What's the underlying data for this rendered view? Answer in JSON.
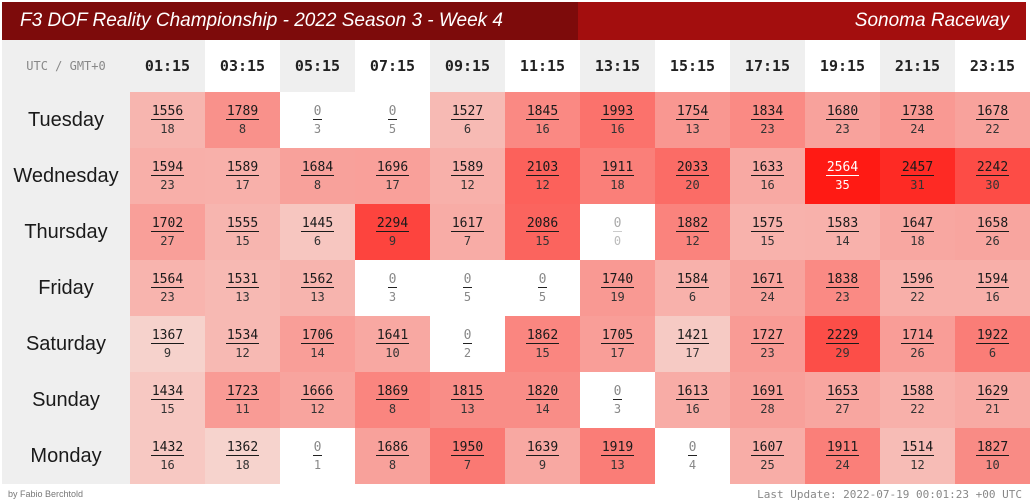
{
  "header": {
    "title": "F3 DOF Reality Championship - 2022 Season 3 - Week 4",
    "track": "Sonoma Raceway"
  },
  "footer": {
    "author": "by Fabio Berchtold",
    "last_update": "Last Update: 2022-07-19 00:01:23 +00 UTC"
  },
  "chart_data": {
    "type": "heatmap",
    "timezone_label": "UTC / GMT+0",
    "times": [
      "01:15",
      "03:15",
      "05:15",
      "07:15",
      "09:15",
      "11:15",
      "13:15",
      "15:15",
      "17:15",
      "19:15",
      "21:15",
      "23:15"
    ],
    "days": [
      "Tuesday",
      "Wednesday",
      "Thursday",
      "Friday",
      "Saturday",
      "Sunday",
      "Monday"
    ],
    "values": [
      [
        [
          1556,
          18
        ],
        [
          1789,
          8
        ],
        [
          0,
          3
        ],
        [
          0,
          5
        ],
        [
          1527,
          6
        ],
        [
          1845,
          16
        ],
        [
          1993,
          16
        ],
        [
          1754,
          13
        ],
        [
          1834,
          23
        ],
        [
          1680,
          23
        ],
        [
          1738,
          24
        ],
        [
          1678,
          22
        ]
      ],
      [
        [
          1594,
          23
        ],
        [
          1589,
          17
        ],
        [
          1684,
          8
        ],
        [
          1696,
          17
        ],
        [
          1589,
          12
        ],
        [
          2103,
          12
        ],
        [
          1911,
          18
        ],
        [
          2033,
          20
        ],
        [
          1633,
          16
        ],
        [
          2564,
          35
        ],
        [
          2457,
          31
        ],
        [
          2242,
          30
        ]
      ],
      [
        [
          1702,
          27
        ],
        [
          1555,
          15
        ],
        [
          1445,
          6
        ],
        [
          2294,
          9
        ],
        [
          1617,
          7
        ],
        [
          2086,
          15
        ],
        [
          0,
          0
        ],
        [
          1882,
          12
        ],
        [
          1575,
          15
        ],
        [
          1583,
          14
        ],
        [
          1647,
          18
        ],
        [
          1658,
          26
        ]
      ],
      [
        [
          1564,
          23
        ],
        [
          1531,
          13
        ],
        [
          1562,
          13
        ],
        [
          0,
          3
        ],
        [
          0,
          5
        ],
        [
          0,
          5
        ],
        [
          1740,
          19
        ],
        [
          1584,
          6
        ],
        [
          1671,
          24
        ],
        [
          1838,
          23
        ],
        [
          1596,
          22
        ],
        [
          1594,
          16
        ]
      ],
      [
        [
          1367,
          9
        ],
        [
          1534,
          12
        ],
        [
          1706,
          14
        ],
        [
          1641,
          10
        ],
        [
          0,
          2
        ],
        [
          1862,
          15
        ],
        [
          1705,
          17
        ],
        [
          1421,
          17
        ],
        [
          1727,
          23
        ],
        [
          2229,
          29
        ],
        [
          1714,
          26
        ],
        [
          1922,
          6
        ]
      ],
      [
        [
          1434,
          15
        ],
        [
          1723,
          11
        ],
        [
          1666,
          12
        ],
        [
          1869,
          8
        ],
        [
          1815,
          13
        ],
        [
          1820,
          14
        ],
        [
          0,
          3
        ],
        [
          1613,
          16
        ],
        [
          1691,
          28
        ],
        [
          1653,
          27
        ],
        [
          1588,
          22
        ],
        [
          1629,
          21
        ]
      ],
      [
        [
          1432,
          16
        ],
        [
          1362,
          18
        ],
        [
          0,
          1
        ],
        [
          1686,
          8
        ],
        [
          1950,
          7
        ],
        [
          1639,
          9
        ],
        [
          1919,
          13
        ],
        [
          0,
          4
        ],
        [
          1607,
          25
        ],
        [
          1911,
          24
        ],
        [
          1514,
          12
        ],
        [
          1827,
          10
        ]
      ]
    ]
  },
  "colors": {
    "title_dark": "#7d0b0b",
    "title_red": "#a30e0e",
    "heat_low": "#f6d3cd",
    "heat_high": "#ff1a14"
  }
}
